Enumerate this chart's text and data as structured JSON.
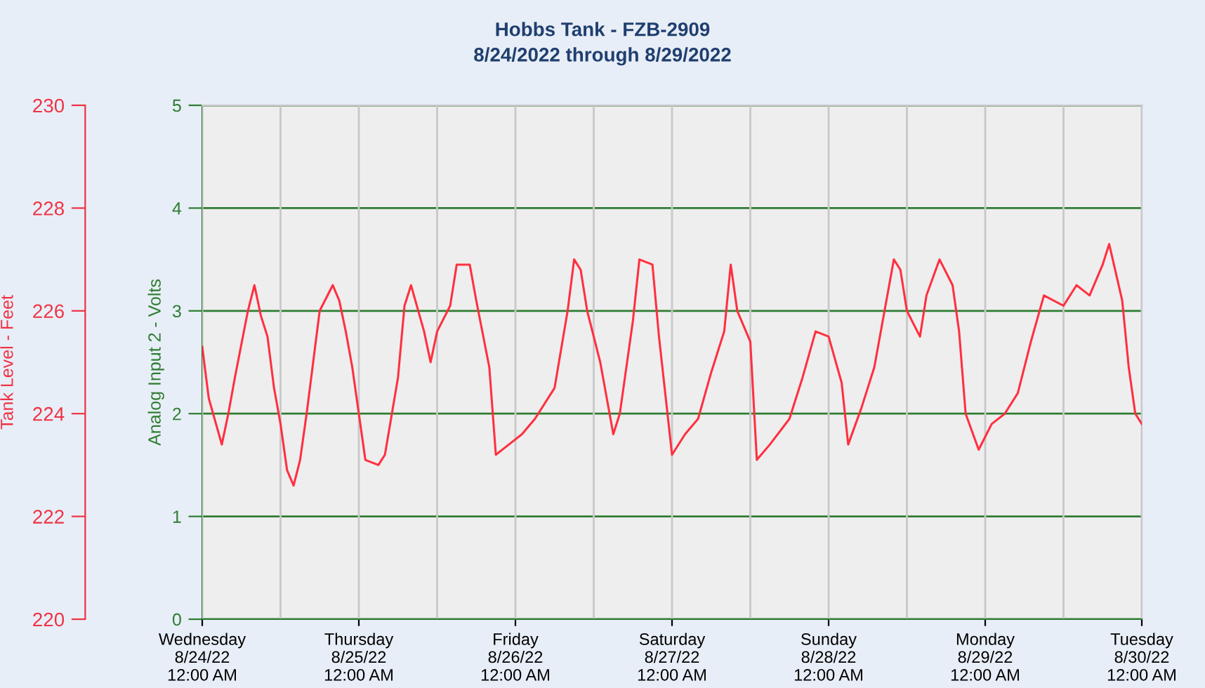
{
  "chart_data": {
    "type": "line",
    "title": "Hobbs Tank - FZB-2909",
    "subtitle": "8/24/2022 through 8/29/2022",
    "ylabel": "Tank Level - Feet",
    "y2label": "Analog Input 2 - Volts",
    "ylim": [
      220,
      230
    ],
    "yticks": [
      220,
      222,
      224,
      226,
      228,
      230
    ],
    "y2lim": [
      0,
      5
    ],
    "y2ticks": [
      0,
      1,
      2,
      3,
      4,
      5
    ],
    "xlim": [
      "2022-08-24T00:00",
      "2022-08-30T00:00"
    ],
    "xticks": [
      {
        "value": "2022-08-24T00:00",
        "label": "Wednesday\n8/24/22\n12:00 AM"
      },
      {
        "value": "2022-08-24T12:00",
        "label": null
      },
      {
        "value": "2022-08-25T00:00",
        "label": "Thursday\n8/25/22\n12:00 AM"
      },
      {
        "value": "2022-08-25T12:00",
        "label": null
      },
      {
        "value": "2022-08-26T00:00",
        "label": "Friday\n8/26/22\n12:00 AM"
      },
      {
        "value": "2022-08-26T12:00",
        "label": null
      },
      {
        "value": "2022-08-27T00:00",
        "label": "Saturday\n8/27/22\n12:00 AM"
      },
      {
        "value": "2022-08-27T12:00",
        "label": null
      },
      {
        "value": "2022-08-28T00:00",
        "label": "Sunday\n8/28/22\n12:00 AM"
      },
      {
        "value": "2022-08-28T12:00",
        "label": null
      },
      {
        "value": "2022-08-29T00:00",
        "label": "Monday\n8/29/22\n12:00 AM"
      },
      {
        "value": "2022-08-29T12:00",
        "label": null
      },
      {
        "value": "2022-08-30T00:00",
        "label": "Tuesday\n8/30/22\n12:00 AM"
      }
    ],
    "grid": true,
    "legend": false,
    "series": [
      {
        "color": "#ff3040",
        "x": [
          "2022-08-24T00:00",
          "2022-08-24T01:00",
          "2022-08-24T03:00",
          "2022-08-24T04:00",
          "2022-08-24T05:00",
          "2022-08-24T07:00",
          "2022-08-24T08:00",
          "2022-08-24T09:00",
          "2022-08-24T10:00",
          "2022-08-24T11:00",
          "2022-08-24T12:00",
          "2022-08-24T13:00",
          "2022-08-24T14:00",
          "2022-08-24T15:00",
          "2022-08-24T16:00",
          "2022-08-24T18:00",
          "2022-08-24T20:00",
          "2022-08-24T21:00",
          "2022-08-24T22:00",
          "2022-08-24T23:00",
          "2022-08-25T00:00",
          "2022-08-25T01:00",
          "2022-08-25T03:00",
          "2022-08-25T04:00",
          "2022-08-25T06:00",
          "2022-08-25T07:00",
          "2022-08-25T08:00",
          "2022-08-25T10:00",
          "2022-08-25T11:00",
          "2022-08-25T12:00",
          "2022-08-25T14:00",
          "2022-08-25T15:00",
          "2022-08-25T17:00",
          "2022-08-25T18:00",
          "2022-08-25T20:00",
          "2022-08-25T21:00",
          "2022-08-25T23:00",
          "2022-08-26T01:00",
          "2022-08-26T03:00",
          "2022-08-26T06:00",
          "2022-08-26T08:00",
          "2022-08-26T09:00",
          "2022-08-26T10:00",
          "2022-08-26T11:00",
          "2022-08-26T13:00",
          "2022-08-26T15:00",
          "2022-08-26T16:00",
          "2022-08-26T18:00",
          "2022-08-26T19:00",
          "2022-08-26T21:00",
          "2022-08-26T22:00",
          "2022-08-27T00:00",
          "2022-08-27T02:00",
          "2022-08-27T04:00",
          "2022-08-27T06:00",
          "2022-08-27T08:00",
          "2022-08-27T09:00",
          "2022-08-27T10:00",
          "2022-08-27T12:00",
          "2022-08-27T13:00",
          "2022-08-27T15:00",
          "2022-08-27T18:00",
          "2022-08-27T20:00",
          "2022-08-27T22:00",
          "2022-08-28T00:00",
          "2022-08-28T02:00",
          "2022-08-28T03:00",
          "2022-08-28T05:00",
          "2022-08-28T07:00",
          "2022-08-28T09:00",
          "2022-08-28T10:00",
          "2022-08-28T11:00",
          "2022-08-28T12:00",
          "2022-08-28T14:00",
          "2022-08-28T15:00",
          "2022-08-28T17:00",
          "2022-08-28T19:00",
          "2022-08-28T20:00",
          "2022-08-28T21:00",
          "2022-08-28T23:00",
          "2022-08-29T01:00",
          "2022-08-29T03:00",
          "2022-08-29T05:00",
          "2022-08-29T07:00",
          "2022-08-29T09:00",
          "2022-08-29T12:00",
          "2022-08-29T14:00",
          "2022-08-29T16:00",
          "2022-08-29T18:00",
          "2022-08-29T19:00",
          "2022-08-29T21:00",
          "2022-08-29T22:00",
          "2022-08-29T23:00",
          "2022-08-30T00:00"
        ],
        "values": [
          225.3,
          224.3,
          223.4,
          224.0,
          224.7,
          226.0,
          226.5,
          225.9,
          225.5,
          224.5,
          223.8,
          222.9,
          222.6,
          223.1,
          224.0,
          226.0,
          226.5,
          226.2,
          225.6,
          224.9,
          224.0,
          223.1,
          223.0,
          223.2,
          224.7,
          226.1,
          226.5,
          225.6,
          225.0,
          225.6,
          226.1,
          226.9,
          226.9,
          226.2,
          224.9,
          223.2,
          223.4,
          223.6,
          223.9,
          224.5,
          226.0,
          227.0,
          226.8,
          226.0,
          225.0,
          223.6,
          224.0,
          225.8,
          227.0,
          226.9,
          225.5,
          223.2,
          223.6,
          223.9,
          224.8,
          225.6,
          226.9,
          226.0,
          225.4,
          223.1,
          223.4,
          223.9,
          224.7,
          225.6,
          225.5,
          224.6,
          223.4,
          224.1,
          224.9,
          226.3,
          227.0,
          226.8,
          226.0,
          225.5,
          226.3,
          227.0,
          226.5,
          225.6,
          224.0,
          223.3,
          223.8,
          224.0,
          224.4,
          225.4,
          226.3,
          226.1,
          226.5,
          226.3,
          226.9,
          227.3,
          226.2,
          224.9,
          224.0,
          223.8
        ]
      }
    ]
  }
}
